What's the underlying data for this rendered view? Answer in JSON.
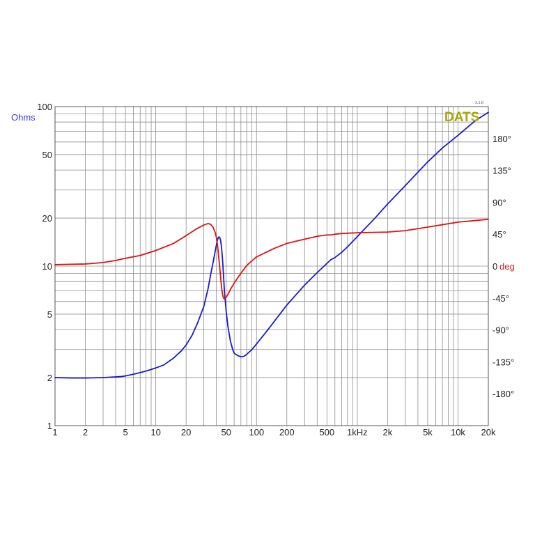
{
  "chart_data": {
    "type": "line",
    "logo_text": "DATS",
    "version": "3.1.6",
    "x_scale": "log",
    "y_left_scale": "log",
    "grid": true,
    "xlim": [
      1,
      20000
    ],
    "ylim_left": [
      1,
      100
    ],
    "ylim_right": [
      -225,
      225
    ],
    "x_ticks": [
      {
        "value": 1,
        "label": "1"
      },
      {
        "value": 2,
        "label": "2"
      },
      {
        "value": 5,
        "label": "5"
      },
      {
        "value": 10,
        "label": "10"
      },
      {
        "value": 20,
        "label": "20"
      },
      {
        "value": 50,
        "label": "50"
      },
      {
        "value": 100,
        "label": "100"
      },
      {
        "value": 200,
        "label": "200"
      },
      {
        "value": 500,
        "label": "500"
      },
      {
        "value": 1000,
        "label": "1kHz"
      },
      {
        "value": 2000,
        "label": "2k"
      },
      {
        "value": 5000,
        "label": "5k"
      },
      {
        "value": 10000,
        "label": "10k"
      },
      {
        "value": 20000,
        "label": "20k"
      }
    ],
    "y_left_ticks": [
      {
        "value": 1,
        "label": "1"
      },
      {
        "value": 2,
        "label": "2"
      },
      {
        "value": 5,
        "label": "5"
      },
      {
        "value": 10,
        "label": "10"
      },
      {
        "value": 20,
        "label": "20"
      },
      {
        "value": 50,
        "label": "50"
      },
      {
        "value": 100,
        "label": "100"
      }
    ],
    "y_left_unit": "Ohms",
    "y_right_ticks": [
      {
        "value": 180,
        "label": "180°"
      },
      {
        "value": 135,
        "label": "135°"
      },
      {
        "value": 90,
        "label": "90°"
      },
      {
        "value": 45,
        "label": "45°"
      },
      {
        "value": 0,
        "label": "0"
      },
      {
        "value": -45,
        "label": "-45°"
      },
      {
        "value": -90,
        "label": "-90°"
      },
      {
        "value": -135,
        "label": "-135°"
      },
      {
        "value": -180,
        "label": "-180°"
      }
    ],
    "y_right_unit": "deg",
    "colors": {
      "impedance": "#1a1acc",
      "phase": "#dd1111",
      "grid": "#8c8c8c",
      "left_unit": "#3a3acc",
      "right_unit": "#cc2222",
      "logo": "#a8a800"
    },
    "series": [
      {
        "axis": "left",
        "x": [
          1,
          1.5,
          2,
          3,
          4,
          4.5,
          5,
          6,
          7,
          8,
          9,
          10,
          12,
          15,
          18,
          20,
          23,
          26,
          30,
          33,
          35,
          37,
          39,
          40,
          41,
          42,
          43,
          44,
          45,
          46,
          47,
          48,
          50,
          52,
          55,
          58,
          60,
          65,
          70,
          75,
          80,
          85,
          90,
          100,
          120,
          150,
          200,
          300,
          400,
          500,
          550,
          600,
          700,
          800,
          1000,
          1500,
          2000,
          3000,
          5000,
          7000,
          10000,
          15000,
          20000
        ],
        "values": [
          2.0,
          1.99,
          1.99,
          2.0,
          2.02,
          2.03,
          2.05,
          2.1,
          2.15,
          2.2,
          2.25,
          2.3,
          2.4,
          2.65,
          2.95,
          3.2,
          3.7,
          4.4,
          5.6,
          7.2,
          8.8,
          10.5,
          12.5,
          13.6,
          14.6,
          15.2,
          15.2,
          14.5,
          13.0,
          11.0,
          8.8,
          7.0,
          5.2,
          4.2,
          3.4,
          3.0,
          2.85,
          2.75,
          2.7,
          2.72,
          2.8,
          2.9,
          3.0,
          3.25,
          3.75,
          4.5,
          5.7,
          7.6,
          9.1,
          10.4,
          11.0,
          11.3,
          12.2,
          13.2,
          15.3,
          20.0,
          24.5,
          32.0,
          45.0,
          55.0,
          66.0,
          82.0,
          92.0
        ]
      },
      {
        "axis": "right",
        "x": [
          1,
          2,
          3,
          4,
          5,
          7,
          10,
          15,
          20,
          25,
          30,
          33,
          35,
          37,
          39,
          40,
          41,
          42,
          43,
          44,
          45,
          46,
          47,
          48,
          50,
          52,
          55,
          60,
          70,
          80,
          100,
          150,
          200,
          300,
          400,
          500,
          550,
          600,
          700,
          1000,
          2000,
          3000,
          5000,
          10000,
          20000
        ],
        "values": [
          2,
          3,
          5,
          8,
          11,
          15,
          22,
          32,
          43,
          52,
          58,
          60,
          59,
          55,
          47,
          40,
          30,
          15,
          0,
          -15,
          -30,
          -40,
          -45,
          -46,
          -44,
          -40,
          -33,
          -24,
          -10,
          1,
          13,
          25,
          32,
          38,
          42,
          44,
          44,
          45,
          46,
          47,
          48,
          50,
          55,
          62,
          66
        ]
      }
    ]
  }
}
